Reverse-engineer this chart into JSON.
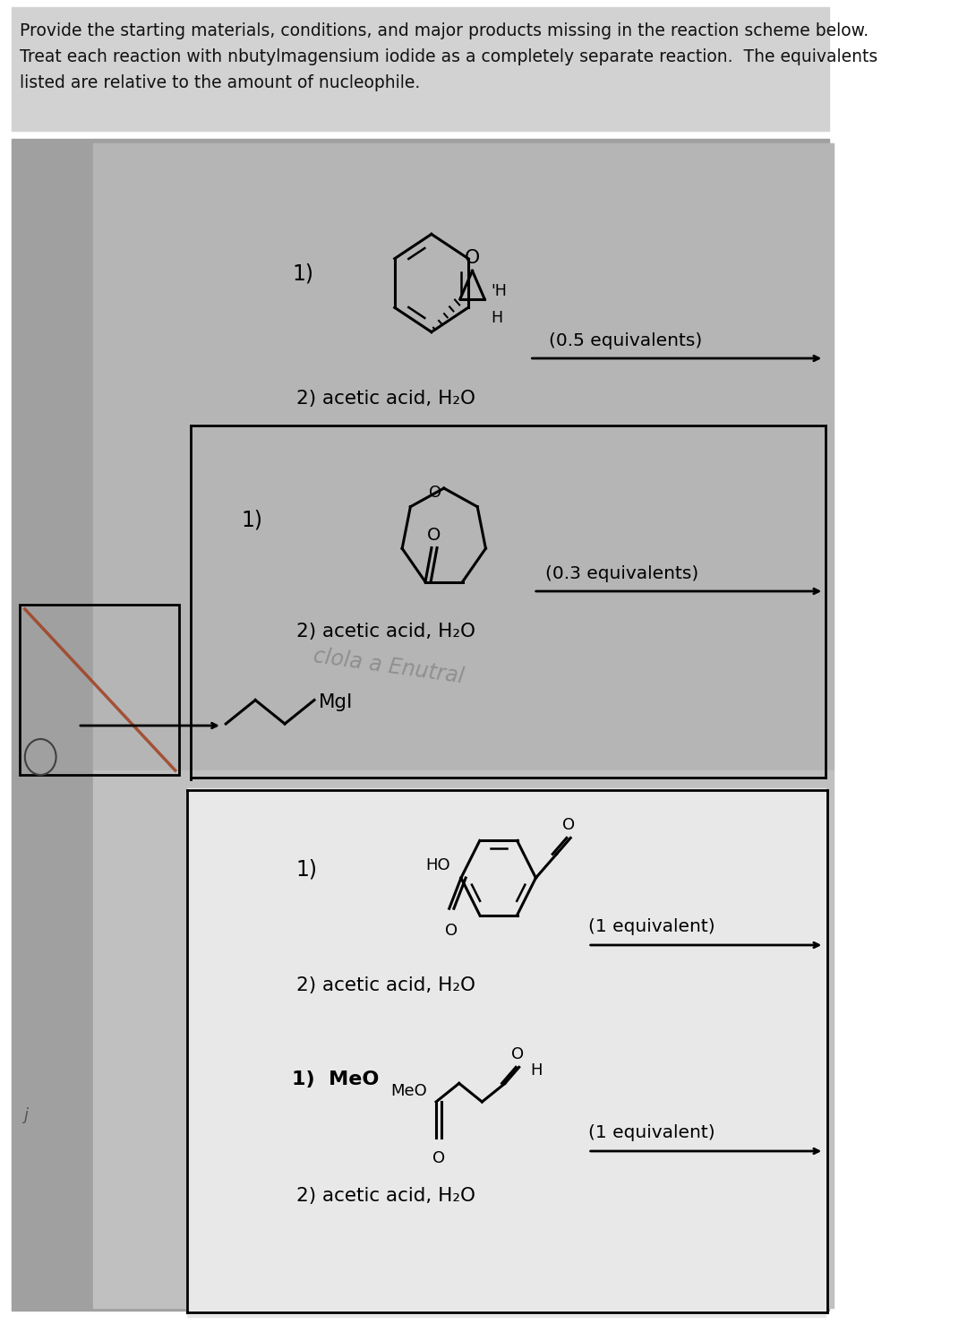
{
  "title_text": "Provide the starting materials, conditions, and major products missing in the reaction scheme below.\nTreat each reaction with nbutylmagensium iodide as a completely separate reaction.  The equivalents\nlisted are relative to the amount of nucleophile.",
  "bg_gray": "#a8a8a8",
  "bg_inner_light": "#b8b8b8",
  "bg_white_box": "#e0e0e0",
  "title_bg": "#d0d0d0",
  "reaction1_equiv": "(0.5 equivalents)",
  "reaction1_cond": "2) acetic acid, H₂O",
  "reaction2_equiv": "(0.3 equivalents)",
  "reaction2_cond": "2) acetic acid, H₂O",
  "nucleophile_label": "MgI",
  "reaction3_equiv": "(1 equivalent)",
  "reaction3_cond": "2) acetic acid, H₂O",
  "reaction4_label": "1)  MeO",
  "reaction4_equiv": "(1 equivalent)",
  "reaction4_cond": "2) acetic acid, H₂O",
  "watermark": "clola a Enutral"
}
